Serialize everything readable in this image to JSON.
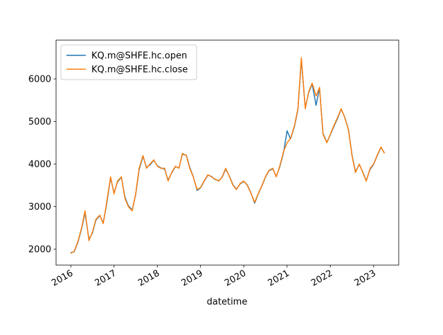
{
  "chart_data": {
    "type": "line",
    "xlabel": "datetime",
    "x": [
      2016,
      2016.08,
      2016.17,
      2016.25,
      2016.33,
      2016.42,
      2016.5,
      2016.58,
      2016.67,
      2016.75,
      2016.83,
      2016.92,
      2017,
      2017.08,
      2017.17,
      2017.25,
      2017.33,
      2017.42,
      2017.5,
      2017.58,
      2017.67,
      2017.75,
      2017.83,
      2017.92,
      2018,
      2018.08,
      2018.17,
      2018.25,
      2018.33,
      2018.42,
      2018.5,
      2018.58,
      2018.67,
      2018.75,
      2018.83,
      2018.92,
      2019,
      2019.08,
      2019.17,
      2019.25,
      2019.33,
      2019.42,
      2019.5,
      2019.58,
      2019.67,
      2019.75,
      2019.83,
      2019.92,
      2020,
      2020.08,
      2020.17,
      2020.25,
      2020.33,
      2020.42,
      2020.5,
      2020.58,
      2020.67,
      2020.75,
      2020.83,
      2020.92,
      2021,
      2021.08,
      2021.17,
      2021.25,
      2021.33,
      2021.42,
      2021.5,
      2021.58,
      2021.67,
      2021.75,
      2021.83,
      2021.92,
      2022,
      2022.08,
      2022.17,
      2022.25,
      2022.33,
      2022.42,
      2022.5,
      2022.58,
      2022.67,
      2022.75,
      2022.83,
      2022.92,
      2023,
      2023.08,
      2023.17,
      2023.25
    ],
    "series": [
      {
        "name": "KQ.m@SHFE.hc.open",
        "color": "#1f77b4",
        "values": [
          1920,
          1940,
          2180,
          2480,
          2850,
          2230,
          2380,
          2680,
          2790,
          2620,
          3060,
          3680,
          3320,
          3580,
          3690,
          3230,
          3020,
          2920,
          3280,
          3870,
          4180,
          3920,
          3980,
          4090,
          3960,
          3910,
          3880,
          3620,
          3790,
          3940,
          3910,
          4230,
          4210,
          3920,
          3710,
          3380,
          3440,
          3590,
          3740,
          3710,
          3640,
          3610,
          3690,
          3880,
          3710,
          3510,
          3410,
          3540,
          3590,
          3510,
          3310,
          3080,
          3290,
          3490,
          3690,
          3840,
          3890,
          3710,
          3930,
          4280,
          4780,
          4590,
          4880,
          5280,
          6450,
          5320,
          5680,
          5880,
          5380,
          5790,
          4720,
          4510,
          4690,
          4880,
          5080,
          5290,
          5110,
          4810,
          4220,
          3820,
          3990,
          3810,
          3610,
          3880,
          3990,
          4190,
          4390,
          4260
        ]
      },
      {
        "name": "KQ.m@SHFE.hc.close",
        "color": "#ff7f0e",
        "values": [
          1900,
          1950,
          2200,
          2500,
          2900,
          2200,
          2400,
          2700,
          2800,
          2600,
          3100,
          3700,
          3300,
          3600,
          3700,
          3200,
          3000,
          2900,
          3300,
          3900,
          4200,
          3900,
          4000,
          4100,
          3950,
          3900,
          3900,
          3600,
          3800,
          3950,
          3900,
          4250,
          4200,
          3900,
          3700,
          3400,
          3450,
          3600,
          3750,
          3700,
          3650,
          3600,
          3700,
          3900,
          3700,
          3500,
          3400,
          3550,
          3600,
          3500,
          3300,
          3100,
          3300,
          3500,
          3700,
          3850,
          3900,
          3700,
          3950,
          4300,
          4500,
          4600,
          4900,
          5300,
          6500,
          5300,
          5700,
          5900,
          5600,
          5800,
          4700,
          4500,
          4700,
          4900,
          5100,
          5300,
          5100,
          4800,
          4200,
          3800,
          4000,
          3800,
          3600,
          3900,
          4000,
          4200,
          4400,
          4250
        ]
      }
    ],
    "xlim": [
      2015.66,
      2023.58
    ],
    "xticks": [
      2016,
      2017,
      2018,
      2019,
      2020,
      2021,
      2022,
      2023
    ],
    "ylim": [
      1626,
      6911
    ],
    "yticks": [
      2000,
      3000,
      4000,
      5000,
      6000
    ],
    "legend": "upper left"
  }
}
